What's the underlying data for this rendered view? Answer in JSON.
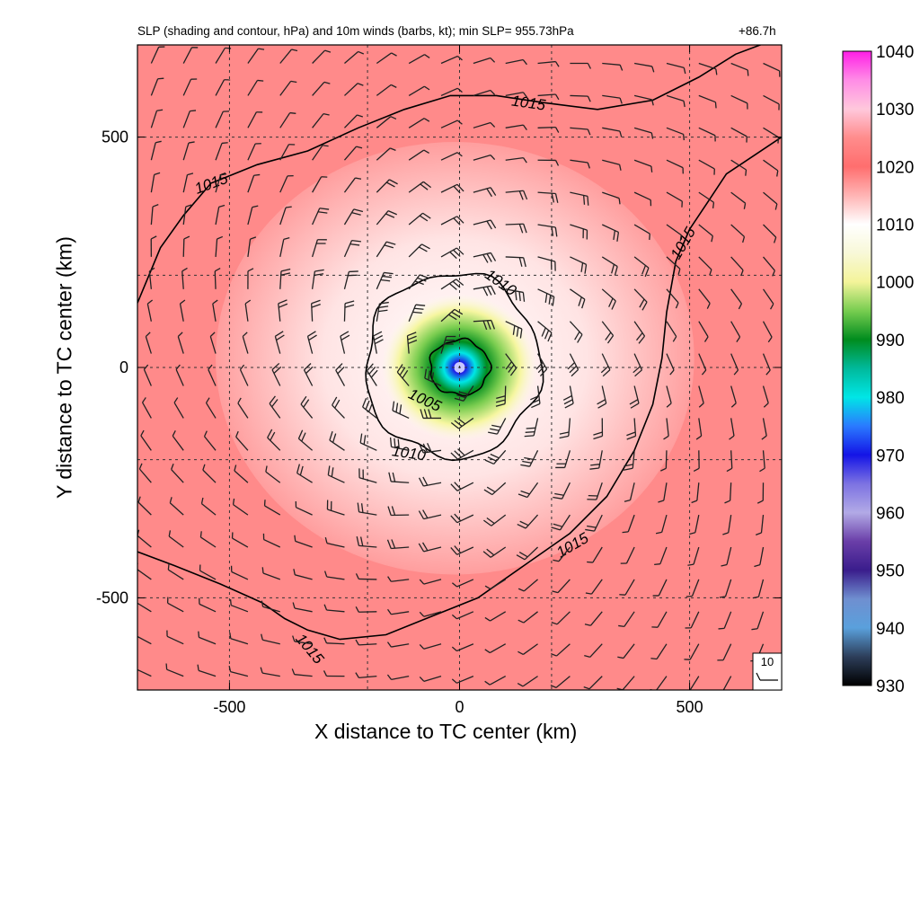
{
  "chart_data": {
    "type": "heatmap",
    "title": "SLP (shading and contour, hPa) and 10m winds (barbs, kt); min SLP= 955.73hPa",
    "time_label": "+86.7h",
    "xlabel": "X distance to TC center (km)",
    "ylabel": "Y distance to TC center (km)",
    "xlim": [
      -700,
      700
    ],
    "ylim": [
      -700,
      700
    ],
    "x_ticks": [
      -500,
      0,
      500
    ],
    "y_ticks": [
      -500,
      0,
      500
    ],
    "x_tick_labels": [
      "-500",
      "0",
      "500"
    ],
    "y_tick_labels": [
      "-500",
      "0",
      "500"
    ],
    "grid": "dashed at ±200 km and ±500 km and 0",
    "colorbar": {
      "min": 930,
      "max": 1040,
      "ticks": [
        930,
        940,
        950,
        960,
        970,
        980,
        990,
        1000,
        1010,
        1020,
        1030,
        1040
      ],
      "tick_labels": [
        "930",
        "940",
        "950",
        "960",
        "970",
        "980",
        "990",
        "1000",
        "1010",
        "1020",
        "1030",
        "1040"
      ],
      "stops": [
        {
          "value": 930,
          "color": "#000000"
        },
        {
          "value": 935,
          "color": "#2d3e5a"
        },
        {
          "value": 940,
          "color": "#5aa0dc"
        },
        {
          "value": 945,
          "color": "#6f8fd0"
        },
        {
          "value": 950,
          "color": "#3a1d8c"
        },
        {
          "value": 955,
          "color": "#6a3ea8"
        },
        {
          "value": 960,
          "color": "#b2aae6"
        },
        {
          "value": 965,
          "color": "#7c72e2"
        },
        {
          "value": 970,
          "color": "#1414e6"
        },
        {
          "value": 975,
          "color": "#2a7aff"
        },
        {
          "value": 980,
          "color": "#00e6e6"
        },
        {
          "value": 985,
          "color": "#00b99b"
        },
        {
          "value": 990,
          "color": "#008c1e"
        },
        {
          "value": 995,
          "color": "#78cd50"
        },
        {
          "value": 1000,
          "color": "#f4f49a"
        },
        {
          "value": 1005,
          "color": "#f8f8d8"
        },
        {
          "value": 1010,
          "color": "#ffffff"
        },
        {
          "value": 1015,
          "color": "#ffb4b4"
        },
        {
          "value": 1020,
          "color": "#ff6e6e"
        },
        {
          "value": 1025,
          "color": "#ff8c8c"
        },
        {
          "value": 1030,
          "color": "#ffc8dc"
        },
        {
          "value": 1035,
          "color": "#ff8ce6"
        },
        {
          "value": 1040,
          "color": "#ff1ee6"
        }
      ]
    },
    "field": {
      "center_km": [
        0,
        0
      ],
      "min_slp_hpa": 955.73,
      "ambient_slp_hpa": 1018
    },
    "contours": [
      {
        "level": 1005,
        "label": "1005",
        "label_at_km": [
          -75,
          -70
        ]
      },
      {
        "level": 1010,
        "label": "1010",
        "label_at_km": [
          90,
          185
        ],
        "label2": "1010",
        "label2_at_km": [
          -110,
          -185
        ]
      },
      {
        "level": 1015,
        "label": "1015",
        "label_at_km": [
          150,
          575
        ],
        "label2": "1015",
        "label2_at_km": [
          -540,
          400
        ],
        "label3": "1015",
        "label3_at_km": [
          485,
          270
        ],
        "label4": "1015",
        "label4_at_km": [
          245,
          -385
        ],
        "label5": "1015",
        "label5_at_km": [
          -325,
          -610
        ]
      }
    ],
    "wind_barbs": {
      "units": "kt",
      "spacing_km": 70,
      "rotation": "cyclonic (counter-clockwise)"
    },
    "reference_vector": {
      "label": "10",
      "units": "kt"
    }
  },
  "colors": {
    "contour": "#000000",
    "grid": "#333333"
  }
}
